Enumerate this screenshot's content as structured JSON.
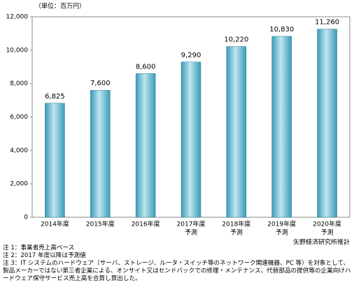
{
  "chart_data": {
    "type": "bar",
    "unit_label": "（単位：百万円）",
    "categories": [
      "2014年度",
      "2015年度",
      "2016年度",
      "2017年度",
      "2018年度",
      "2019年度",
      "2020年度"
    ],
    "category_notes": [
      null,
      null,
      null,
      "予測",
      "予測",
      "予測",
      "予測"
    ],
    "values": [
      6825,
      7600,
      8600,
      9290,
      10220,
      10830,
      11260
    ],
    "value_labels": [
      "6,825",
      "7,600",
      "8,600",
      "9,290",
      "10,220",
      "10,830",
      "11,260"
    ],
    "color": "#3a9bb6",
    "ylim": [
      0,
      12000
    ],
    "yticks": [
      0,
      {
        "value": 2000,
        "label": "2,000"
      },
      {
        "value": 4000,
        "label": "4,000"
      },
      {
        "value": 6000,
        "label": "6,000"
      },
      {
        "value": 8000,
        "label": "8,000"
      },
      {
        "value": 10000,
        "label": "10,000"
      },
      {
        "value": 12000,
        "label": "12,000"
      }
    ],
    "grid": false,
    "source": "矢野経済研究所推計",
    "notes": [
      "注 1：事業者売上高ベース",
      "注 2：2017 年度以降は予測値",
      "注 3：IT システムのハードウェア（サーバ、ストレージ、ルータ・スイッチ等のネットワーク関連機器、PC 等）を対象として、製品メーカーではない第三者企業による、オンサイト又はセンドバックでの修理・メンテナンス、代替部品の提供等の企業向けハードウェア保守サービス売上高を合算し算出した。"
    ]
  }
}
